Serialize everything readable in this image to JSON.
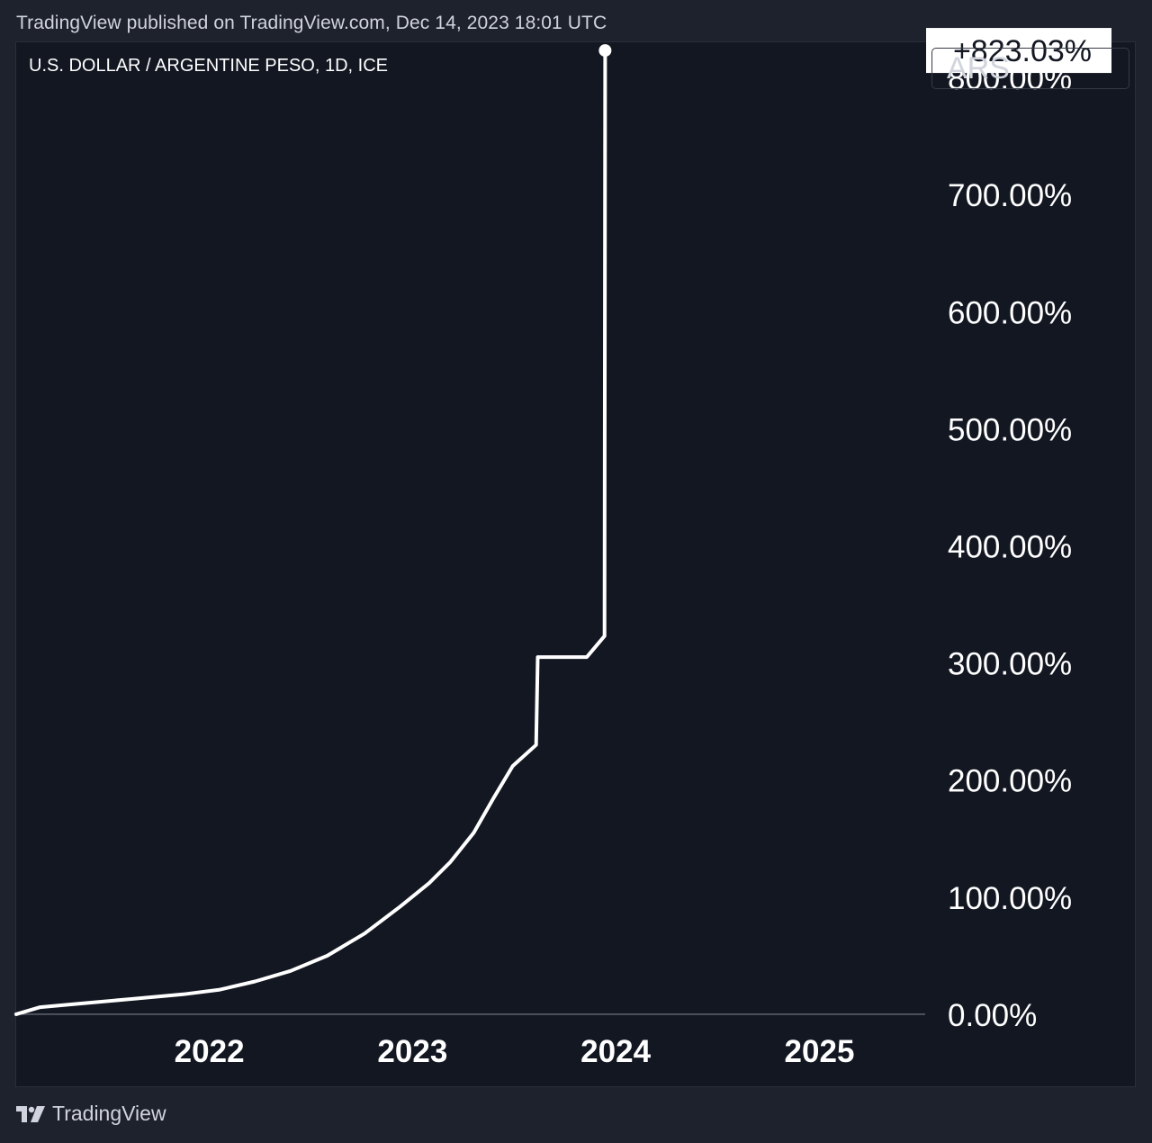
{
  "header": {
    "published": "TradingView published on TradingView.com, Dec 14, 2023 18:01 UTC"
  },
  "symbol": {
    "title": "U.S. DOLLAR / ARGENTINE PESO, 1D, ICE",
    "currency": "ARS"
  },
  "footer": {
    "brand": "TradingView"
  },
  "colors": {
    "background": "#1e222d",
    "plot_background": "#131722",
    "line": "#ffffff",
    "baseline": "#787b86"
  },
  "chart_data": {
    "type": "line",
    "title": "U.S. DOLLAR / ARGENTINE PESO, 1D, ICE",
    "ylabel": "",
    "xlabel": "",
    "y_unit": "%",
    "ylim": [
      -60,
      830
    ],
    "xlim": [
      "2021-01-19",
      "2025-07-10"
    ],
    "y_ticks": [
      {
        "value": 0,
        "label": "0.00%"
      },
      {
        "value": 100,
        "label": "100.00%"
      },
      {
        "value": 200,
        "label": "200.00%"
      },
      {
        "value": 300,
        "label": "300.00%"
      },
      {
        "value": 400,
        "label": "400.00%"
      },
      {
        "value": 500,
        "label": "500.00%"
      },
      {
        "value": 600,
        "label": "600.00%"
      },
      {
        "value": 700,
        "label": "700.00%"
      },
      {
        "value": 800,
        "label": "800.00%"
      }
    ],
    "x_ticks": [
      {
        "value": "2022-01-01",
        "label": "2022"
      },
      {
        "value": "2023-01-01",
        "label": "2023"
      },
      {
        "value": "2024-01-01",
        "label": "2024"
      },
      {
        "value": "2025-01-01",
        "label": "2025"
      }
    ],
    "last_value_label": "+823.03%",
    "series": [
      {
        "points": [
          {
            "x": "2021-01-19",
            "y": 0
          },
          {
            "x": "2021-03-03",
            "y": 6
          },
          {
            "x": "2021-05-11",
            "y": 9
          },
          {
            "x": "2021-08-14",
            "y": 13
          },
          {
            "x": "2021-11-15",
            "y": 17
          },
          {
            "x": "2022-01-20",
            "y": 21
          },
          {
            "x": "2022-03-24",
            "y": 28
          },
          {
            "x": "2022-05-27",
            "y": 37
          },
          {
            "x": "2022-08-01",
            "y": 50
          },
          {
            "x": "2022-10-07",
            "y": 69
          },
          {
            "x": "2022-12-10",
            "y": 92
          },
          {
            "x": "2023-01-31",
            "y": 112
          },
          {
            "x": "2023-03-10",
            "y": 130
          },
          {
            "x": "2023-04-21",
            "y": 155
          },
          {
            "x": "2023-05-27",
            "y": 185
          },
          {
            "x": "2023-06-30",
            "y": 212
          },
          {
            "x": "2023-08-11",
            "y": 230
          },
          {
            "x": "2023-08-14",
            "y": 305
          },
          {
            "x": "2023-11-10",
            "y": 305
          },
          {
            "x": "2023-12-12",
            "y": 323
          },
          {
            "x": "2023-12-13",
            "y": 823.03
          }
        ]
      }
    ]
  }
}
